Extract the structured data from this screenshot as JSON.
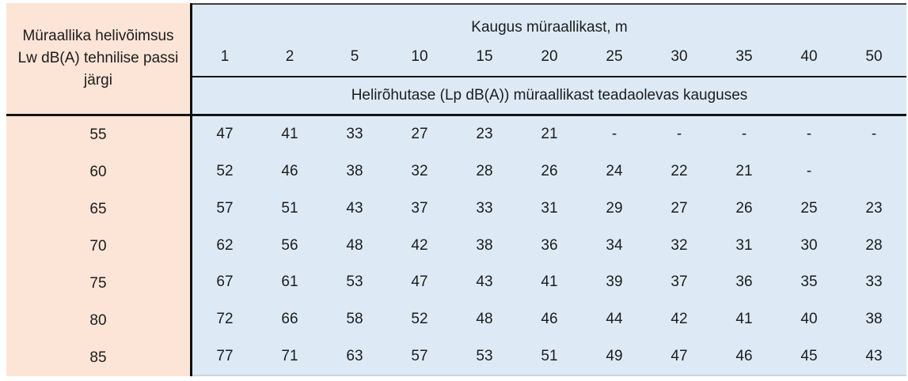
{
  "table": {
    "row_header_title": "Müraallika helivõimsus Lw dB(A) tehnilise passi järgi",
    "col_group_title": "Kaugus müraallikast, m",
    "sub_header": "Helirõhutase (Lp dB(A)) müraallikast teadaolevas kauguses",
    "distances": [
      "1",
      "2",
      "5",
      "10",
      "15",
      "20",
      "25",
      "30",
      "35",
      "40",
      "50"
    ],
    "rows": [
      {
        "lw": "55",
        "values": [
          "47",
          "41",
          "33",
          "27",
          "23",
          "21",
          "-",
          "-",
          "-",
          "-",
          "-"
        ]
      },
      {
        "lw": "60",
        "values": [
          "52",
          "46",
          "38",
          "32",
          "28",
          "26",
          "24",
          "22",
          "21",
          "-",
          ""
        ]
      },
      {
        "lw": "65",
        "values": [
          "57",
          "51",
          "43",
          "37",
          "33",
          "31",
          "29",
          "27",
          "26",
          "25",
          "23"
        ]
      },
      {
        "lw": "70",
        "values": [
          "62",
          "56",
          "48",
          "42",
          "38",
          "36",
          "34",
          "32",
          "31",
          "30",
          "28"
        ]
      },
      {
        "lw": "75",
        "values": [
          "67",
          "61",
          "53",
          "47",
          "43",
          "41",
          "39",
          "37",
          "36",
          "35",
          "33"
        ]
      },
      {
        "lw": "80",
        "values": [
          "72",
          "66",
          "58",
          "52",
          "48",
          "46",
          "44",
          "42",
          "41",
          "40",
          "38"
        ]
      },
      {
        "lw": "85",
        "values": [
          "77",
          "71",
          "63",
          "57",
          "53",
          "51",
          "49",
          "47",
          "46",
          "45",
          "43"
        ]
      }
    ],
    "colors": {
      "row_header_bg": "#fce4d6",
      "data_bg": "#ddeaf6",
      "border": "#141414",
      "text": "#1c1c1c"
    }
  },
  "chart_data": {
    "type": "table",
    "title": "Kaugus müraallikast, m",
    "row_header_label": "Müraallika helivõimsus Lw dB(A) tehnilise passi järgi",
    "value_label": "Helirõhutase (Lp dB(A)) müraallikast teadaolevas kauguses",
    "columns": [
      1,
      2,
      5,
      10,
      15,
      20,
      25,
      30,
      35,
      40,
      50
    ],
    "rows": [
      {
        "lw": 55,
        "values": [
          47,
          41,
          33,
          27,
          23,
          21,
          null,
          null,
          null,
          null,
          null
        ]
      },
      {
        "lw": 60,
        "values": [
          52,
          46,
          38,
          32,
          28,
          26,
          24,
          22,
          21,
          null,
          null
        ]
      },
      {
        "lw": 65,
        "values": [
          57,
          51,
          43,
          37,
          33,
          31,
          29,
          27,
          26,
          25,
          23
        ]
      },
      {
        "lw": 70,
        "values": [
          62,
          56,
          48,
          42,
          38,
          36,
          34,
          32,
          31,
          30,
          28
        ]
      },
      {
        "lw": 75,
        "values": [
          67,
          61,
          53,
          47,
          43,
          41,
          39,
          37,
          36,
          35,
          33
        ]
      },
      {
        "lw": 80,
        "values": [
          72,
          66,
          58,
          52,
          48,
          46,
          44,
          42,
          41,
          40,
          38
        ]
      },
      {
        "lw": 85,
        "values": [
          77,
          71,
          63,
          57,
          53,
          51,
          49,
          47,
          46,
          45,
          43
        ]
      }
    ]
  }
}
